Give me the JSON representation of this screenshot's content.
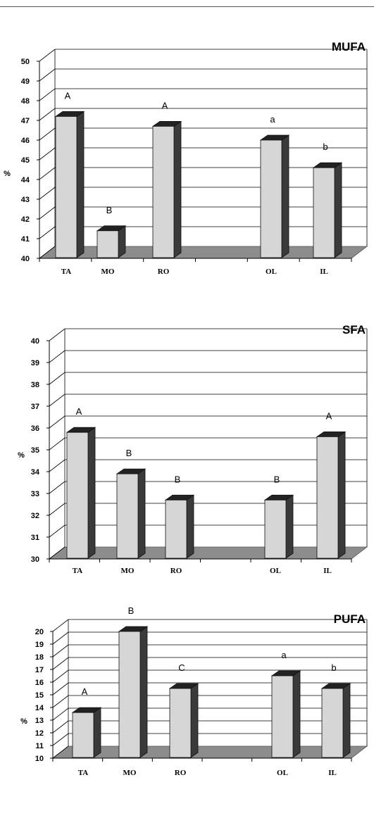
{
  "chart_data": [
    {
      "type": "bar",
      "title": "MUFA",
      "ylabel": "%",
      "ylim": [
        40,
        50
      ],
      "ytick_step": 1,
      "grid": true,
      "categories": [
        "TA",
        "MO",
        "RO",
        "",
        "OL",
        "IL"
      ],
      "values": [
        47.2,
        41.4,
        46.7,
        null,
        46.0,
        44.6
      ],
      "bar_labels": [
        "A",
        "B",
        "A",
        "",
        "a",
        "b"
      ]
    },
    {
      "type": "bar",
      "title": "SFA",
      "ylabel": "%",
      "ylim": [
        30,
        40
      ],
      "ytick_step": 1,
      "grid": true,
      "categories": [
        "TA",
        "MO",
        "RO",
        "",
        "OL",
        "IL"
      ],
      "values": [
        35.8,
        33.9,
        32.7,
        null,
        32.7,
        35.6
      ],
      "bar_labels": [
        "A",
        "B",
        "B",
        "",
        "B",
        "A"
      ]
    },
    {
      "type": "bar",
      "title": "PUFA",
      "ylabel": "%",
      "ylim": [
        10,
        20
      ],
      "ytick_step": 1,
      "grid": true,
      "categories": [
        "TA",
        "MO",
        "RO",
        "",
        "OL",
        "IL"
      ],
      "values": [
        13.6,
        20.0,
        15.5,
        null,
        16.5,
        15.5
      ],
      "bar_labels": [
        "A",
        "B",
        "C",
        "",
        "a",
        "b"
      ]
    }
  ],
  "colors": {
    "bar_front": "#d6d6d6",
    "bar_side": "#3a3a3a",
    "bar_top": "#222222",
    "floor": "#8c8c8c",
    "grid": "#000000"
  }
}
